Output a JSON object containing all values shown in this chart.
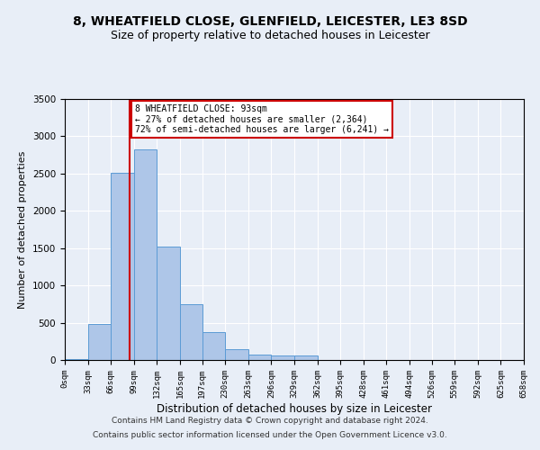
{
  "title": "8, WHEATFIELD CLOSE, GLENFIELD, LEICESTER, LE3 8SD",
  "subtitle": "Size of property relative to detached houses in Leicester",
  "xlabel": "Distribution of detached houses by size in Leicester",
  "ylabel": "Number of detached properties",
  "footer_line1": "Contains HM Land Registry data © Crown copyright and database right 2024.",
  "footer_line2": "Contains public sector information licensed under the Open Government Licence v3.0.",
  "annotation_title": "8 WHEATFIELD CLOSE: 93sqm",
  "annotation_line1": "← 27% of detached houses are smaller (2,364)",
  "annotation_line2": "72% of semi-detached houses are larger (6,241) →",
  "property_size": 93,
  "bar_bins": [
    0,
    33,
    66,
    99,
    132,
    165,
    197,
    230,
    263,
    296,
    329,
    362,
    395,
    428,
    461,
    494,
    526,
    559,
    592,
    625,
    658
  ],
  "bar_values": [
    15,
    480,
    2510,
    2820,
    1520,
    750,
    380,
    140,
    75,
    55,
    55,
    0,
    0,
    0,
    0,
    0,
    0,
    0,
    0,
    0
  ],
  "bar_color": "#aec6e8",
  "bar_edge_color": "#5b9bd5",
  "vline_color": "#cc0000",
  "vline_x": 93,
  "ylim": [
    0,
    3500
  ],
  "xlim": [
    0,
    658
  ],
  "fig_bg_color": "#e8eef7",
  "plot_bg_color": "#e8eef7",
  "grid_color": "#ffffff",
  "annotation_box_color": "#ffffff",
  "annotation_box_edge": "#cc0000",
  "title_fontsize": 10,
  "subtitle_fontsize": 9,
  "tick_labels": [
    "0sqm",
    "33sqm",
    "66sqm",
    "99sqm",
    "132sqm",
    "165sqm",
    "197sqm",
    "230sqm",
    "263sqm",
    "296sqm",
    "329sqm",
    "362sqm",
    "395sqm",
    "428sqm",
    "461sqm",
    "494sqm",
    "526sqm",
    "559sqm",
    "592sqm",
    "625sqm",
    "658sqm"
  ]
}
